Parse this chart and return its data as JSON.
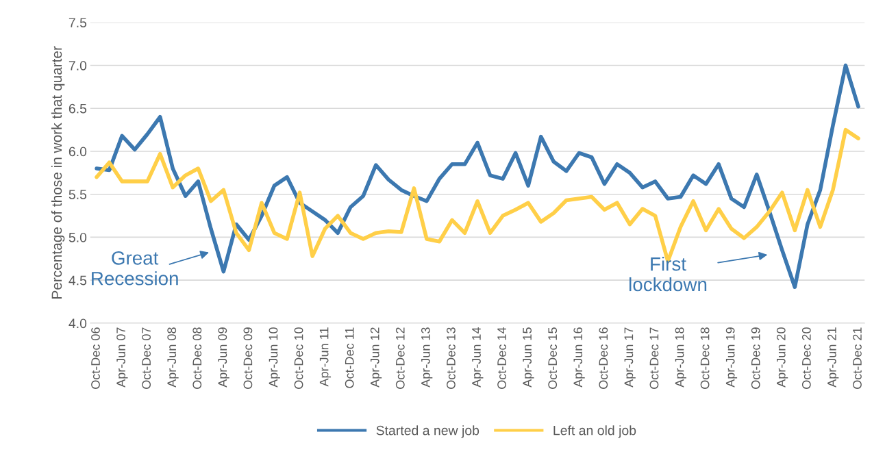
{
  "chart_data": {
    "type": "line",
    "ylabel": "Percentage of those in work that quarter",
    "categories": [
      "Oct-Dec 06",
      null,
      "Apr-Jun 07",
      null,
      "Oct-Dec 07",
      null,
      "Apr-Jun 08",
      null,
      "Oct-Dec 08",
      null,
      "Apr-Jun 09",
      null,
      "Oct-Dec 09",
      null,
      "Apr-Jun 10",
      null,
      "Oct-Dec 10",
      null,
      "Apr-Jun 11",
      null,
      "Oct-Dec 11",
      null,
      "Apr-Jun 12",
      null,
      "Oct-Dec 12",
      null,
      "Apr-Jun 13",
      null,
      "Oct-Dec 13",
      null,
      "Apr-Jun 14",
      null,
      "Oct-Dec 14",
      null,
      "Apr-Jun 15",
      null,
      "Oct-Dec 15",
      null,
      "Apr-Jun 16",
      null,
      "Oct-Dec 16",
      null,
      "Apr-Jun 17",
      null,
      "Oct-Dec 17",
      null,
      "Apr-Jun 18",
      null,
      "Oct-Dec 18",
      null,
      "Apr-Jun 19",
      null,
      "Oct-Dec 19",
      null,
      "Apr-Jun 20",
      null,
      "Oct-Dec 20",
      null,
      "Apr-Jun 21",
      null,
      "Oct-Dec 21"
    ],
    "series": [
      {
        "name": "Started a new job",
        "color": "#3c78b0",
        "values": [
          5.8,
          5.78,
          6.18,
          6.02,
          6.2,
          6.4,
          5.8,
          5.48,
          5.65,
          5.1,
          4.6,
          5.15,
          4.97,
          5.25,
          5.6,
          5.7,
          5.4,
          5.3,
          5.2,
          5.05,
          5.35,
          5.48,
          5.84,
          5.67,
          5.55,
          5.48,
          5.42,
          5.68,
          5.85,
          5.85,
          6.1,
          5.72,
          5.68,
          5.98,
          5.6,
          6.17,
          5.88,
          5.77,
          5.98,
          5.93,
          5.62,
          5.85,
          5.75,
          5.58,
          5.65,
          5.45,
          5.47,
          5.72,
          5.62,
          5.85,
          5.45,
          5.35,
          5.73,
          5.3,
          4.85,
          4.42,
          5.15,
          5.55,
          6.3,
          7.0,
          6.52
        ]
      },
      {
        "name": "Left an old job",
        "color": "#ffcf48",
        "values": [
          5.7,
          5.87,
          5.65,
          5.65,
          5.65,
          5.97,
          5.58,
          5.72,
          5.8,
          5.42,
          5.55,
          5.05,
          4.85,
          5.4,
          5.05,
          4.98,
          5.52,
          4.78,
          5.1,
          5.25,
          5.05,
          4.98,
          5.05,
          5.07,
          5.06,
          5.57,
          4.98,
          4.95,
          5.2,
          5.05,
          5.42,
          5.05,
          5.25,
          5.32,
          5.4,
          5.18,
          5.28,
          5.43,
          5.45,
          5.47,
          5.32,
          5.4,
          5.15,
          5.33,
          5.25,
          4.72,
          5.12,
          5.42,
          5.08,
          5.33,
          5.1,
          4.99,
          5.12,
          5.3,
          5.52,
          5.08,
          5.55,
          5.12,
          5.55,
          6.25,
          6.15
        ]
      }
    ],
    "annotations": [
      "Great\nRecession",
      "First\nlockdown"
    ],
    "ylim": [
      4.0,
      7.5
    ],
    "yticks": [
      {
        "value": 4.0,
        "label": "4.0"
      },
      {
        "value": 4.5,
        "label": "4.5"
      },
      {
        "value": 5.0,
        "label": "5.0"
      },
      {
        "value": 5.5,
        "label": "5.5"
      },
      {
        "value": 6.0,
        "label": "6.0"
      },
      {
        "value": 6.5,
        "label": "6.5"
      },
      {
        "value": 7.0,
        "label": "7.0"
      },
      {
        "value": 7.5,
        "label": "7.5"
      }
    ],
    "grid": "y",
    "legend": "bottom",
    "marker": "none",
    "line_style": "solid"
  }
}
